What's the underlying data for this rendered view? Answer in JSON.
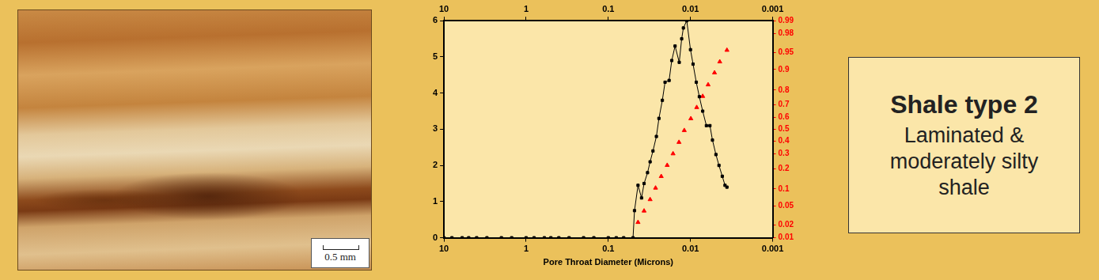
{
  "chart_data": {
    "type": "scatter",
    "x_label": "Pore Throat Diameter (Microns)",
    "log": "x",
    "grid": false,
    "xlim": [
      10,
      0.001
    ],
    "xticks": [
      10,
      1,
      0.1,
      0.01,
      0.001
    ],
    "ylim": [
      0,
      6
    ],
    "yticks": [
      0,
      1,
      2,
      3,
      4,
      5,
      6
    ],
    "y2lim": [
      0.01,
      0.99
    ],
    "y2ticks": [
      0.01,
      0.02,
      0.05,
      0.1,
      0.2,
      0.3,
      0.4,
      0.5,
      0.6,
      0.7,
      0.8,
      0.9,
      0.95,
      0.98,
      0.99
    ],
    "series": [
      {
        "color": "#000000",
        "marker": "square",
        "line_style": "solid",
        "x": [
          10,
          8,
          6,
          5,
          4,
          3,
          2,
          1.5,
          1,
          0.8,
          0.6,
          0.5,
          0.4,
          0.3,
          0.2,
          0.15,
          0.1,
          0.08,
          0.065,
          0.05,
          0.048,
          0.0435,
          0.0394,
          0.0367,
          0.0333,
          0.031,
          0.0286,
          0.026,
          0.0242,
          0.022,
          0.0204,
          0.0182,
          0.0169,
          0.0154,
          0.0137,
          0.0128,
          0.0122,
          0.0111,
          0.01,
          0.0093,
          0.0085,
          0.0078,
          0.0071,
          0.0064,
          0.0058,
          0.0054,
          0.0049,
          0.0045,
          0.0041,
          0.0038,
          0.0036
        ],
        "values": [
          0,
          0,
          0,
          0,
          0,
          0,
          0,
          0,
          0,
          0,
          0,
          0,
          0,
          0,
          0,
          0,
          0,
          0,
          0,
          0,
          0.75,
          1.45,
          1.1,
          1.5,
          1.8,
          2.1,
          2.4,
          2.8,
          3.3,
          3.8,
          4.3,
          4.35,
          4.9,
          5.3,
          4.85,
          5.5,
          5.8,
          6.0,
          5.2,
          4.8,
          4.3,
          3.9,
          3.5,
          3.1,
          3.1,
          2.7,
          2.3,
          2.0,
          1.7,
          1.45,
          1.4
        ]
      },
      {
        "color": "#ff0000",
        "marker": "triangle",
        "line_style": "none",
        "axis": "y2",
        "x": [
          0.0435,
          0.0367,
          0.031,
          0.0266,
          0.0227,
          0.0192,
          0.0163,
          0.0138,
          0.0119,
          0.0099,
          0.0084,
          0.0071,
          0.0061,
          0.0051,
          0.0044,
          0.0036
        ],
        "values": [
          0.023,
          0.04,
          0.066,
          0.104,
          0.156,
          0.22,
          0.3,
          0.39,
          0.49,
          0.59,
          0.68,
          0.76,
          0.83,
          0.887,
          0.926,
          0.955
        ]
      }
    ]
  },
  "image": {
    "scale_bar": "0.5 mm"
  },
  "label_box": {
    "title": "Shale type 2",
    "lines": [
      "Laminated &",
      "moderately silty",
      "shale"
    ]
  }
}
